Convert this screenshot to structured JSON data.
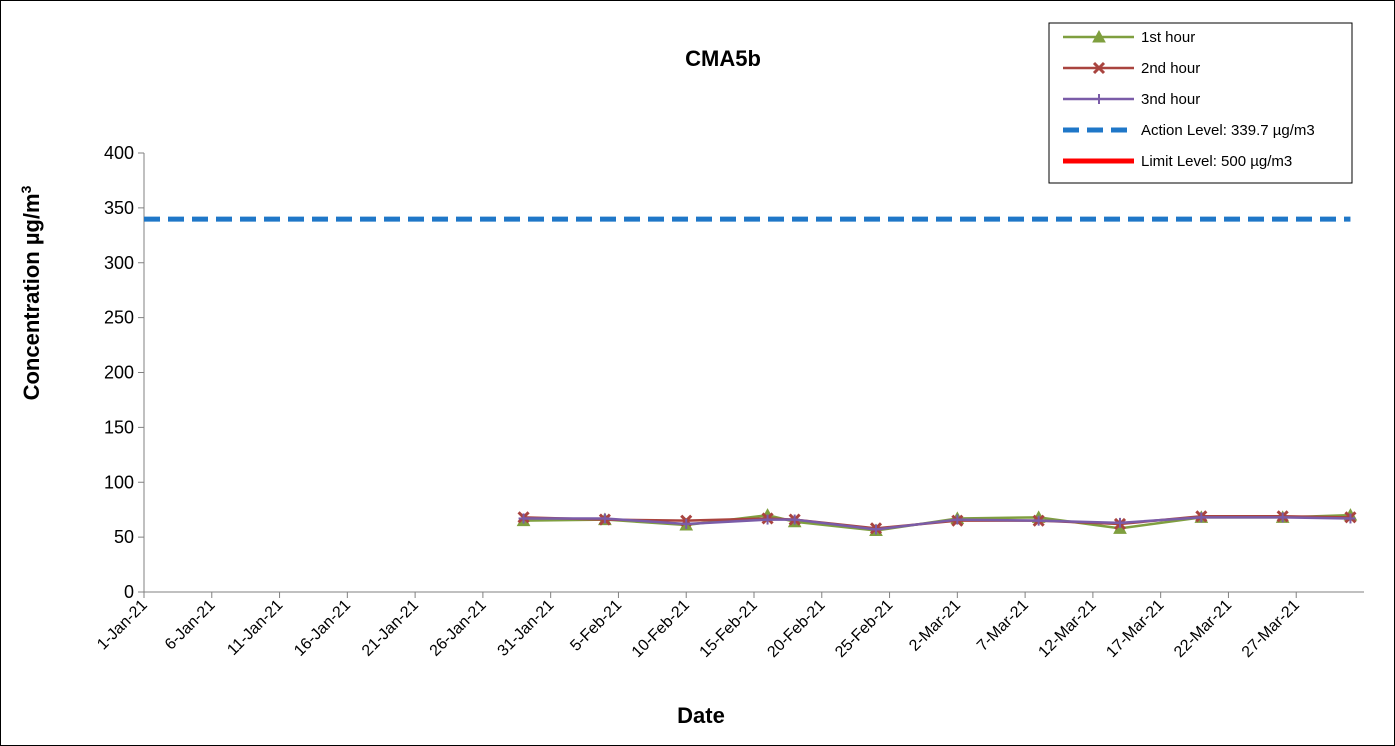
{
  "chart_data": {
    "type": "line",
    "title": "CMA5b",
    "xlabel": "Date",
    "ylabel_main": "Concentration µg/m",
    "ylabel_sup": "3",
    "ylim": [
      0,
      400
    ],
    "yticks": [
      0,
      50,
      100,
      150,
      200,
      250,
      300,
      350,
      400
    ],
    "xlim": [
      "2021-01-01",
      "2021-04-01"
    ],
    "xticks": [
      {
        "date": "2021-01-01",
        "label": "1-Jan-21"
      },
      {
        "date": "2021-01-06",
        "label": "6-Jan-21"
      },
      {
        "date": "2021-01-11",
        "label": "11-Jan-21"
      },
      {
        "date": "2021-01-16",
        "label": "16-Jan-21"
      },
      {
        "date": "2021-01-21",
        "label": "21-Jan-21"
      },
      {
        "date": "2021-01-26",
        "label": "26-Jan-21"
      },
      {
        "date": "2021-01-31",
        "label": "31-Jan-21"
      },
      {
        "date": "2021-02-05",
        "label": "5-Feb-21"
      },
      {
        "date": "2021-02-10",
        "label": "10-Feb-21"
      },
      {
        "date": "2021-02-15",
        "label": "15-Feb-21"
      },
      {
        "date": "2021-02-20",
        "label": "20-Feb-21"
      },
      {
        "date": "2021-02-25",
        "label": "25-Feb-21"
      },
      {
        "date": "2021-03-02",
        "label": "2-Mar-21"
      },
      {
        "date": "2021-03-07",
        "label": "7-Mar-21"
      },
      {
        "date": "2021-03-12",
        "label": "12-Mar-21"
      },
      {
        "date": "2021-03-17",
        "label": "17-Mar-21"
      },
      {
        "date": "2021-03-22",
        "label": "22-Mar-21"
      },
      {
        "date": "2021-03-27",
        "label": "27-Mar-21"
      }
    ],
    "x": [
      "2021-01-29",
      "2021-02-04",
      "2021-02-10",
      "2021-02-16",
      "2021-02-18",
      "2021-02-24",
      "2021-03-02",
      "2021-03-08",
      "2021-03-14",
      "2021-03-20",
      "2021-03-26",
      "2021-03-31"
    ],
    "series": [
      {
        "name": "1st hour",
        "color": "#7f9f3f",
        "marker": "triangle",
        "values": [
          65,
          66,
          61,
          70,
          64,
          56,
          67,
          68,
          58,
          68,
          68,
          70
        ]
      },
      {
        "name": "2nd hour",
        "color": "#a9443f",
        "marker": "x",
        "values": [
          68,
          66,
          65,
          67,
          66,
          58,
          65,
          65,
          62,
          69,
          69,
          68
        ]
      },
      {
        "name": "3nd hour",
        "color": "#7a5ca8",
        "marker": "plus",
        "values": [
          67,
          67,
          62,
          66,
          66,
          57,
          66,
          65,
          63,
          68,
          68,
          67
        ]
      },
      {
        "name": "Action Level: 339.7 µg/m3",
        "color": "#1f77c8",
        "style": "dashed",
        "constant": 339.7
      },
      {
        "name": "Limit Level: 500 µg/m3",
        "color": "#ff0000",
        "style": "solid",
        "constant": 500
      }
    ],
    "grid": false,
    "legend_position": "top-right"
  }
}
